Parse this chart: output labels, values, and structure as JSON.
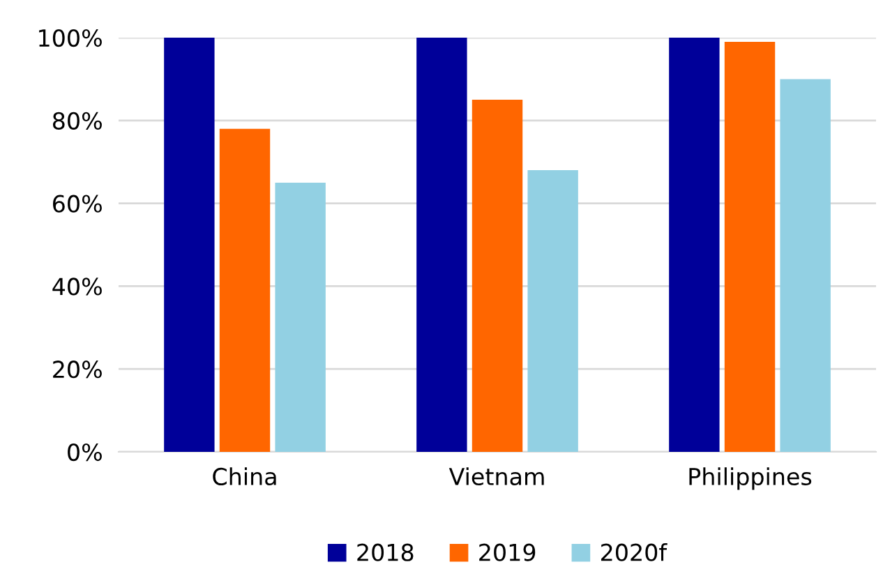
{
  "chart_data": {
    "type": "bar",
    "categories": [
      "China",
      "Vietnam",
      "Philippines"
    ],
    "series": [
      {
        "name": "2018",
        "color": "#000099",
        "values": [
          100,
          100,
          100
        ]
      },
      {
        "name": "2019",
        "color": "#ff6600",
        "values": [
          78,
          85,
          99
        ]
      },
      {
        "name": "2020f",
        "color": "#92d0e3",
        "values": [
          65,
          68,
          90
        ]
      }
    ],
    "ylim": [
      0,
      100
    ],
    "yticks": [
      {
        "value": 0,
        "label": "0%"
      },
      {
        "value": 20,
        "label": "20%"
      },
      {
        "value": 40,
        "label": "40%"
      },
      {
        "value": 60,
        "label": "60%"
      },
      {
        "value": 80,
        "label": "80%"
      },
      {
        "value": 100,
        "label": "100%"
      }
    ],
    "grid": "y",
    "legend": "bottom"
  }
}
